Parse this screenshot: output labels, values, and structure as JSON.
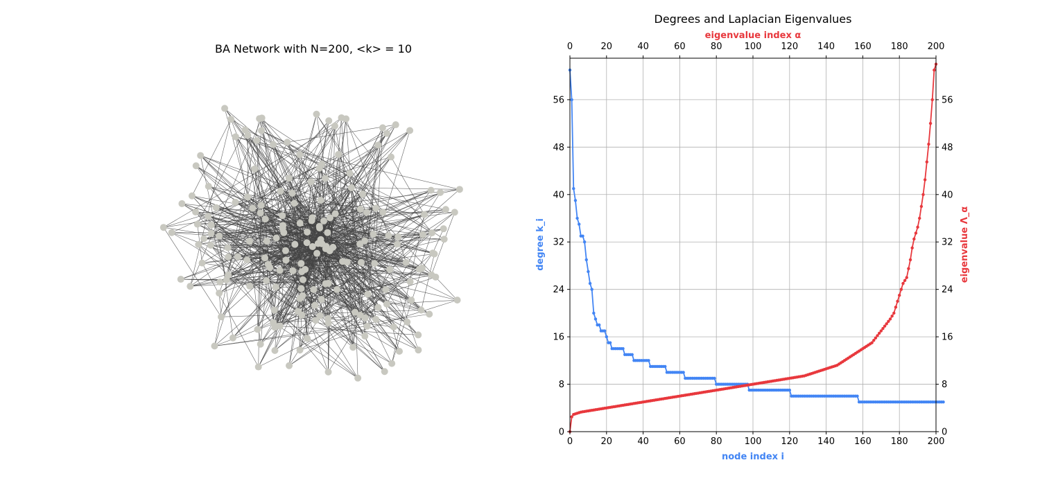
{
  "chart_data": [
    {
      "type": "network",
      "title": "BA Network with N=200, <k> = 10",
      "nodes": 200,
      "mean_degree": 10,
      "node_color": "#c8c8c0",
      "edge_color": "#444444"
    },
    {
      "type": "line",
      "title": "Degrees and Laplacian Eigenvalues",
      "xlabel": "node index i",
      "xlabel_top": "eigenvalue index α",
      "ylabel": "degree k_i",
      "ylabel_right": "eigenvalue Λ_α",
      "xlim": [
        0,
        200
      ],
      "ylim": [
        0,
        63
      ],
      "x_ticks": [
        "0",
        "20",
        "40",
        "60",
        "80",
        "100",
        "120",
        "140",
        "160",
        "180",
        "200"
      ],
      "y_ticks": [
        "0",
        "8",
        "16",
        "24",
        "32",
        "40",
        "48",
        "56"
      ],
      "grid": true,
      "series": [
        {
          "name": "degree",
          "color": "#4285f4",
          "x_axis": "bottom",
          "y_axis": "left",
          "values": [
            61,
            56,
            41,
            39,
            36,
            35,
            33,
            33,
            32,
            29,
            27,
            25,
            24,
            20,
            19,
            18,
            18,
            17,
            17,
            17,
            16,
            15,
            15,
            14,
            14,
            14,
            14,
            14,
            14,
            14,
            13,
            13,
            13,
            13,
            13,
            12,
            12,
            12,
            12,
            12,
            12,
            12,
            12,
            12,
            11,
            11,
            11,
            11,
            11,
            11,
            11,
            11,
            11,
            10,
            10,
            10,
            10,
            10,
            10,
            10,
            10,
            10,
            10,
            9,
            9,
            9,
            9,
            9,
            9,
            9,
            9,
            9,
            9,
            9,
            9,
            9,
            9,
            9,
            9,
            9,
            8,
            8,
            8,
            8,
            8,
            8,
            8,
            8,
            8,
            8,
            8,
            8,
            8,
            8,
            8,
            8,
            8,
            8,
            7,
            7,
            7,
            7,
            7,
            7,
            7,
            7,
            7,
            7,
            7,
            7,
            7,
            7,
            7,
            7,
            7,
            7,
            7,
            7,
            7,
            7,
            7,
            6,
            6,
            6,
            6,
            6,
            6,
            6,
            6,
            6,
            6,
            6,
            6,
            6,
            6,
            6,
            6,
            6,
            6,
            6,
            6,
            6,
            6,
            6,
            6,
            6,
            6,
            6,
            6,
            6,
            6,
            6,
            6,
            6,
            6,
            6,
            6,
            6,
            5,
            5,
            5,
            5,
            5,
            5,
            5,
            5,
            5,
            5,
            5,
            5,
            5,
            5,
            5,
            5,
            5,
            5,
            5,
            5,
            5,
            5,
            5,
            5,
            5,
            5,
            5,
            5,
            5,
            5,
            5,
            5,
            5,
            5,
            5,
            5,
            5,
            5,
            5,
            5,
            5,
            5,
            5,
            5,
            5,
            5,
            5
          ]
        },
        {
          "name": "eigenvalue",
          "color": "#e8383d",
          "x_axis": "top",
          "y_axis": "right",
          "values": [
            0,
            2.5,
            2.9,
            3.0,
            3.1,
            3.2,
            3.3,
            3.35,
            3.4,
            3.45,
            3.5,
            3.55,
            3.6,
            3.65,
            3.7,
            3.75,
            3.8,
            3.85,
            3.9,
            3.95,
            4.0,
            4.05,
            4.1,
            4.15,
            4.2,
            4.25,
            4.3,
            4.35,
            4.4,
            4.45,
            4.5,
            4.55,
            4.6,
            4.65,
            4.7,
            4.75,
            4.8,
            4.85,
            4.9,
            4.95,
            5.0,
            5.05,
            5.1,
            5.15,
            5.2,
            5.25,
            5.3,
            5.35,
            5.4,
            5.45,
            5.5,
            5.55,
            5.6,
            5.65,
            5.7,
            5.75,
            5.8,
            5.85,
            5.9,
            5.95,
            6.0,
            6.05,
            6.1,
            6.15,
            6.2,
            6.25,
            6.3,
            6.35,
            6.4,
            6.45,
            6.5,
            6.55,
            6.6,
            6.65,
            6.7,
            6.75,
            6.8,
            6.85,
            6.9,
            6.95,
            7.0,
            7.05,
            7.1,
            7.15,
            7.2,
            7.25,
            7.3,
            7.35,
            7.4,
            7.45,
            7.5,
            7.55,
            7.6,
            7.65,
            7.7,
            7.75,
            7.8,
            7.85,
            7.9,
            7.95,
            8.0,
            8.05,
            8.1,
            8.15,
            8.2,
            8.25,
            8.3,
            8.35,
            8.4,
            8.45,
            8.5,
            8.55,
            8.6,
            8.65,
            8.7,
            8.75,
            8.8,
            8.85,
            8.9,
            8.95,
            9.0,
            9.05,
            9.1,
            9.15,
            9.2,
            9.25,
            9.3,
            9.35,
            9.4,
            9.5,
            9.6,
            9.7,
            9.8,
            9.9,
            10.0,
            10.1,
            10.2,
            10.3,
            10.4,
            10.5,
            10.6,
            10.7,
            10.8,
            10.9,
            11.0,
            11.1,
            11.2,
            11.4,
            11.6,
            11.8,
            12.0,
            12.2,
            12.4,
            12.6,
            12.8,
            13.0,
            13.2,
            13.4,
            13.6,
            13.8,
            14.0,
            14.2,
            14.4,
            14.6,
            14.8,
            15.0,
            15.4,
            15.8,
            16.2,
            16.6,
            17.0,
            17.4,
            17.8,
            18.2,
            18.6,
            19.0,
            19.5,
            20.0,
            21.0,
            22.0,
            23.0,
            24.0,
            25.0,
            25.5,
            26.0,
            27.5,
            29.0,
            31.0,
            32.5,
            33.5,
            34.5,
            36.0,
            38.0,
            40.0,
            42.5,
            45.5,
            48.5,
            52.0,
            56.0,
            61.0,
            62.0
          ]
        }
      ]
    }
  ]
}
